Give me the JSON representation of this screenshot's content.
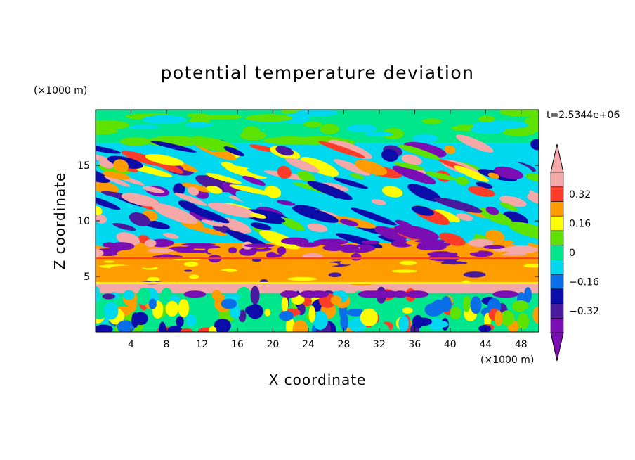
{
  "chart_data": {
    "type": "heatmap",
    "title": "potential temperature deviation",
    "xlabel": "X coordinate",
    "ylabel": "Z coordinate",
    "x_unit": "(×1000 m)",
    "y_unit": "(×1000 m)",
    "time_label": "t=2.5344e+06",
    "xlim": [
      0,
      50
    ],
    "ylim": [
      0,
      20
    ],
    "x_ticks": [
      4,
      8,
      12,
      16,
      20,
      24,
      28,
      32,
      36,
      40,
      44,
      48
    ],
    "x_tick_labels": [
      "4",
      "8",
      "12",
      "16",
      "20",
      "24",
      "28",
      "32",
      "36",
      "40",
      "44",
      "48"
    ],
    "y_ticks": [
      5,
      10,
      15
    ],
    "y_tick_labels": [
      "5",
      "10",
      "15"
    ],
    "colorbar": {
      "levels": [
        -0.4,
        -0.32,
        -0.24,
        -0.16,
        -0.08,
        0,
        0.08,
        0.16,
        0.24,
        0.32,
        0.4
      ],
      "tick_values": [
        -0.32,
        -0.16,
        0,
        0.16,
        0.32
      ],
      "tick_labels": [
        "−0.32",
        "−0.16",
        "0",
        "0.16",
        "0.32"
      ],
      "colors": [
        "#7a0db3",
        "#4a1a9e",
        "#0c0ca8",
        "#0a6ee8",
        "#00d8f0",
        "#00e68c",
        "#5ee300",
        "#ffff00",
        "#ff9c00",
        "#ff3c28",
        "#f5a8a8"
      ],
      "extend": "both"
    },
    "field_bands": [
      {
        "z_range": [
          17,
          20
        ],
        "value": 0.0
      },
      {
        "z_range": [
          12,
          17
        ],
        "value": "mixed -0.4 to 0.4"
      },
      {
        "z_range": [
          8,
          12
        ],
        "value": "mixed -0.4 to 0.4"
      },
      {
        "z_range": [
          4.3,
          8
        ],
        "value": 0.24
      },
      {
        "z_range": [
          3.5,
          4.3
        ],
        "value": 0.4
      },
      {
        "z_range": [
          0,
          3.5
        ],
        "value": "mixed -0.3 to 0.3"
      }
    ]
  }
}
